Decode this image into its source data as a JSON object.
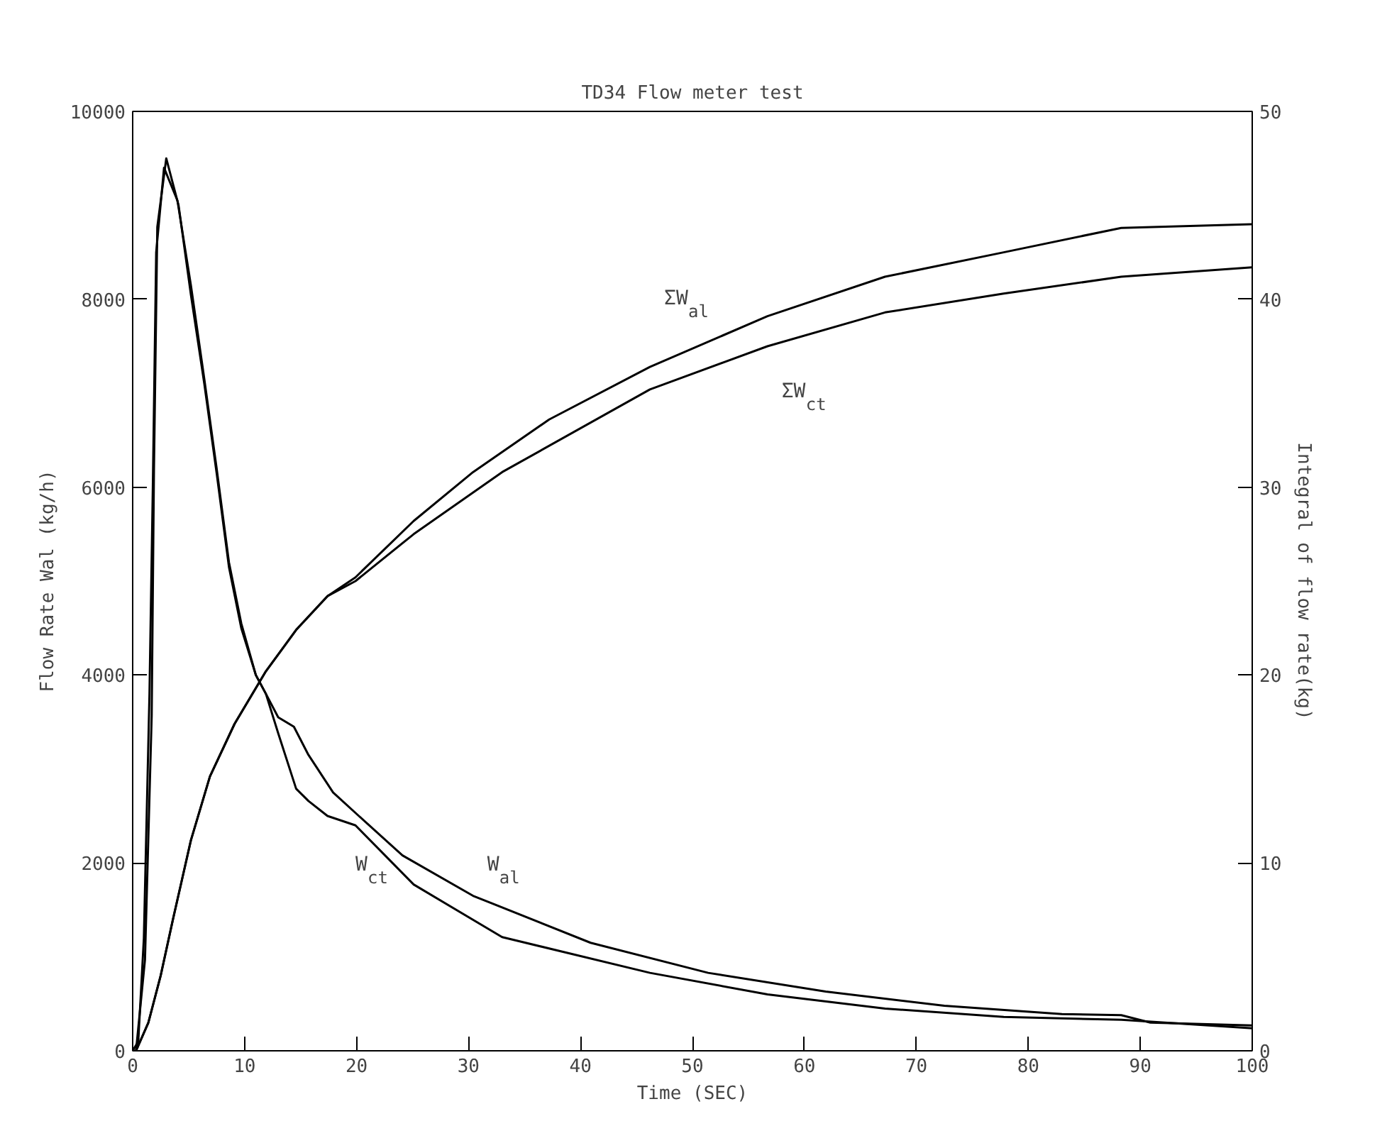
{
  "chart_data": {
    "type": "line",
    "title": "TD34 Flow meter test",
    "xlabel": "Time (SEC)",
    "ylabel": "Flow Rate Wal (kg/h)",
    "y2label": "Integral of flow rate(kg)",
    "xlim": [
      0,
      100
    ],
    "xticks": [
      0,
      10,
      20,
      30,
      40,
      50,
      60,
      70,
      80,
      90,
      100
    ],
    "ylim": [
      0,
      10000
    ],
    "yticks": [
      0,
      2000,
      4000,
      6000,
      8000,
      10000
    ],
    "y2lim": [
      0,
      50
    ],
    "y2ticks": [
      0,
      10,
      20,
      30,
      40,
      50
    ],
    "grid": false,
    "marker": "none",
    "line_style": "solid",
    "series": [
      {
        "name": "W$_{al}$",
        "color": "#000000",
        "x": [
          0,
          0.3,
          1.1,
          1.7,
          1.9,
          2.2,
          3.0,
          4.1,
          5.2,
          6.4,
          7.5,
          8.6,
          9.7,
          11.0,
          11.9,
          13.0,
          14.4,
          15.7,
          17.9,
          20.2,
          24.1,
          30.4,
          40.9,
          51.4,
          61.9,
          72.5,
          83,
          88.3,
          90.9,
          100
        ],
        "values": [
          0,
          0,
          970,
          3570,
          6170,
          8770,
          9500,
          9000,
          8050,
          7100,
          6150,
          5150,
          4500,
          4000,
          3800,
          3550,
          3450,
          3150,
          2750,
          2500,
          2080,
          1650,
          1150,
          830,
          630,
          480,
          390,
          380,
          300,
          270
        ]
      },
      {
        "name": "W$_{ct}$",
        "color": "#000000",
        "x": [
          0,
          0.5,
          1.0,
          1.5,
          1.8,
          2.1,
          2.8,
          4.0,
          5.2,
          6.4,
          7.5,
          8.6,
          9.7,
          11.0,
          11.9,
          13.0,
          14.6,
          15.7,
          17.4,
          19.9,
          25.1,
          33,
          46.2,
          56.7,
          67.2,
          77.8,
          88.3,
          100
        ],
        "values": [
          0,
          100,
          1200,
          3800,
          6000,
          8500,
          9400,
          9050,
          8150,
          7150,
          6200,
          5200,
          4550,
          4000,
          3800,
          3380,
          2790,
          2660,
          2500,
          2400,
          1770,
          1210,
          830,
          600,
          450,
          360,
          330,
          240
        ]
      },
      {
        "name": "ΣW$_{al}$",
        "color": "#000000",
        "axis": "y2",
        "x": [
          0.3,
          1.4,
          2.5,
          3.6,
          5.2,
          6.9,
          9.1,
          11.9,
          14.6,
          17.4,
          19.9,
          25.1,
          30.4,
          37.2,
          46.2,
          56.7,
          67.2,
          77.8,
          88.3,
          100
        ],
        "values": [
          0,
          1.5,
          4.0,
          7.0,
          11.2,
          14.6,
          17.4,
          20.2,
          22.4,
          24.2,
          25.2,
          28.2,
          30.8,
          33.6,
          36.4,
          39.1,
          41.2,
          42.5,
          43.8,
          44.0
        ]
      },
      {
        "name": "ΣW$_{ct}$",
        "color": "#000000",
        "axis": "y2",
        "x": [
          0.3,
          1.4,
          2.5,
          3.6,
          5.2,
          6.9,
          9.1,
          11.9,
          14.6,
          17.4,
          19.9,
          25.1,
          33,
          46.2,
          56.7,
          67.2,
          77.8,
          88.3,
          100
        ],
        "values": [
          0,
          1.5,
          4.0,
          7.0,
          11.2,
          14.6,
          17.4,
          20.2,
          22.4,
          24.2,
          25.0,
          27.5,
          30.8,
          35.2,
          37.5,
          39.3,
          40.3,
          41.2,
          41.7
        ]
      }
    ]
  }
}
